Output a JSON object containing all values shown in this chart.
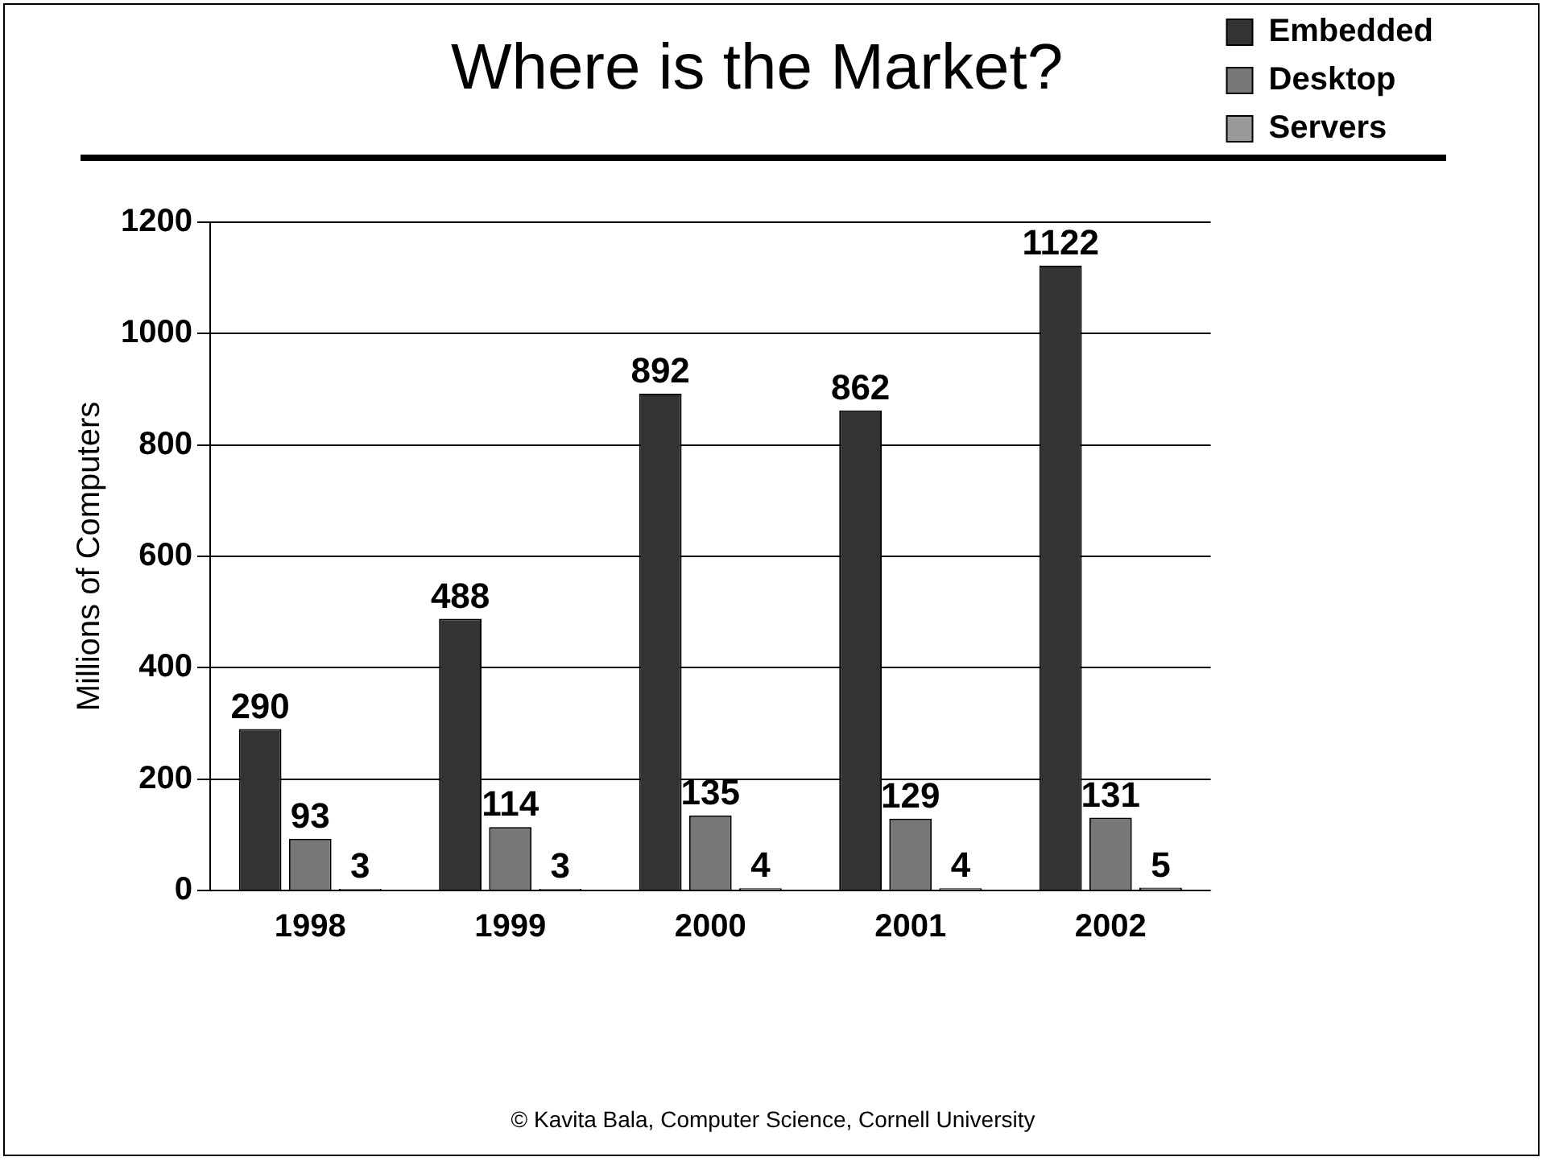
{
  "chart_data": {
    "type": "bar",
    "title": "Where is the Market?",
    "ylabel": "Millions of Computers",
    "categories": [
      "1998",
      "1999",
      "2000",
      "2001",
      "2002"
    ],
    "series": [
      {
        "name": "Embedded",
        "color": "#333333",
        "values": [
          290,
          488,
          892,
          862,
          1122
        ]
      },
      {
        "name": "Desktop",
        "color": "#777777",
        "values": [
          93,
          114,
          135,
          129,
          131
        ]
      },
      {
        "name": "Servers",
        "color": "#999999",
        "values": [
          3,
          3,
          4,
          4,
          5
        ]
      }
    ],
    "ylim": [
      0,
      1200
    ],
    "yticks": [
      0,
      200,
      400,
      600,
      800,
      1000,
      1200
    ],
    "grid": "y",
    "legend": "top right",
    "data_labels": true,
    "annotations": [
      "© Kavita Bala, Computer Science, Cornell University"
    ]
  }
}
